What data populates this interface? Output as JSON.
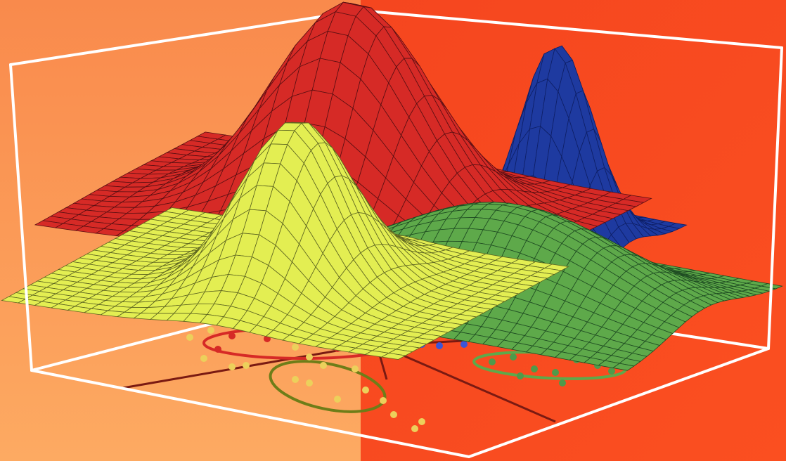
{
  "colors": {
    "background_left": "#fb8a45",
    "background_left_light": "#fca35c",
    "background_right": "#f8431f",
    "background_right_dark": "#ee3514",
    "box_edge": "#ffffff",
    "red_surface": "#d62a26",
    "red_mesh": "#5a0f12",
    "yellow_surface": "#e3ee52",
    "yellow_mesh": "#5c6420",
    "green_surface": "#5ea94a",
    "green_mesh": "#1e4b22",
    "blue_surface": "#1e3aa0",
    "blue_dots": "#3b55d8",
    "purple_contour": "#7a2a9a",
    "yellow_dot": "#ecd05b",
    "olive_contour": "#6e7d18",
    "green_dot": "#4f9a4a",
    "decision_line": "#7a1a12"
  },
  "surfaces": [
    {
      "name": "red-gaussian-surface"
    },
    {
      "name": "blue-gaussian-surface"
    },
    {
      "name": "green-gaussian-surface"
    },
    {
      "name": "yellow-gaussian-surface"
    }
  ],
  "projections": [
    {
      "name": "red-class-contour"
    },
    {
      "name": "blue-class-contour"
    },
    {
      "name": "yellow-class-contour"
    },
    {
      "name": "green-class-contour"
    }
  ]
}
